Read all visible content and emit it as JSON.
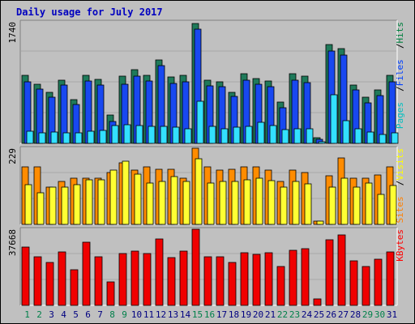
{
  "chart_data": [
    {
      "type": "bar",
      "panel": "top",
      "title": "Daily usage for July 2017",
      "ymax_label": "1740",
      "ylim": [
        0,
        1740
      ],
      "categories": [
        "1",
        "2",
        "3",
        "4",
        "5",
        "6",
        "7",
        "8",
        "9",
        "10",
        "11",
        "12",
        "13",
        "14",
        "15",
        "16",
        "17",
        "18",
        "19",
        "20",
        "21",
        "22",
        "23",
        "24",
        "25",
        "26",
        "27",
        "28",
        "29",
        "30",
        "31"
      ],
      "weekend_days": [
        "1",
        "2",
        "8",
        "9",
        "15",
        "16",
        "22",
        "23",
        "29",
        "30"
      ],
      "legend": [
        {
          "label": "Pages",
          "color": "#00c0c0"
        },
        {
          "label": "Files",
          "color": "#0040ff"
        },
        {
          "label": "Hits",
          "color": "#008040"
        }
      ],
      "series": [
        {
          "name": "Hits",
          "color": "#1f7a5a",
          "values": [
            970,
            850,
            730,
            910,
            625,
            970,
            920,
            410,
            960,
            1050,
            980,
            1200,
            950,
            980,
            1720,
            900,
            880,
            730,
            1000,
            930,
            890,
            590,
            1000,
            960,
            85,
            1410,
            1360,
            830,
            660,
            760,
            970
          ]
        },
        {
          "name": "Files",
          "color": "#1848f0",
          "values": [
            880,
            780,
            660,
            830,
            560,
            890,
            840,
            310,
            850,
            960,
            890,
            1110,
            860,
            880,
            1630,
            820,
            810,
            670,
            910,
            850,
            810,
            510,
            900,
            870,
            60,
            1320,
            1260,
            760,
            580,
            680,
            880
          ]
        },
        {
          "name": "Pages",
          "color": "#33e0ff",
          "values": [
            170,
            150,
            160,
            150,
            150,
            170,
            190,
            250,
            270,
            260,
            240,
            240,
            230,
            210,
            600,
            240,
            210,
            230,
            240,
            300,
            250,
            200,
            210,
            210,
            20,
            700,
            330,
            210,
            160,
            130,
            150
          ]
        }
      ]
    },
    {
      "type": "bar",
      "panel": "middle",
      "ymax_label": "229",
      "ylim": [
        0,
        229
      ],
      "legend": [
        {
          "label": "Sites",
          "color": "#ff8000"
        },
        {
          "label": "Visits",
          "color": "#ffff00"
        }
      ],
      "series": [
        {
          "name": "Sites",
          "color": "#ff8c00",
          "values": [
            174,
            174,
            111,
            128,
            139,
            139,
            139,
            155,
            184,
            164,
            174,
            165,
            165,
            139,
            229,
            174,
            164,
            165,
            174,
            174,
            164,
            130,
            164,
            155,
            10,
            145,
            200,
            139,
            139,
            149,
            172
          ]
        },
        {
          "name": "Visits",
          "color": "#ffff33",
          "values": [
            120,
            96,
            111,
            112,
            120,
            133,
            133,
            164,
            190,
            150,
            124,
            130,
            144,
            130,
            198,
            124,
            130,
            130,
            133,
            140,
            132,
            111,
            130,
            123,
            10,
            111,
            140,
            111,
            124,
            90,
            118
          ]
        }
      ]
    },
    {
      "type": "bar",
      "panel": "bottom",
      "ymax_label": "37668",
      "ylim": [
        0,
        37668
      ],
      "legend": [
        {
          "label": "KBytes",
          "color": "#ff0000"
        }
      ],
      "series": [
        {
          "name": "KBytes",
          "color": "#f00000",
          "values": [
            28700,
            24100,
            21400,
            26600,
            17800,
            31300,
            24100,
            11800,
            25600,
            26900,
            25700,
            32800,
            23600,
            26800,
            37668,
            24100,
            24100,
            21400,
            26100,
            25100,
            26100,
            19100,
            27400,
            28000,
            3100,
            32400,
            34800,
            22000,
            19100,
            22900,
            26500
          ]
        }
      ]
    }
  ]
}
